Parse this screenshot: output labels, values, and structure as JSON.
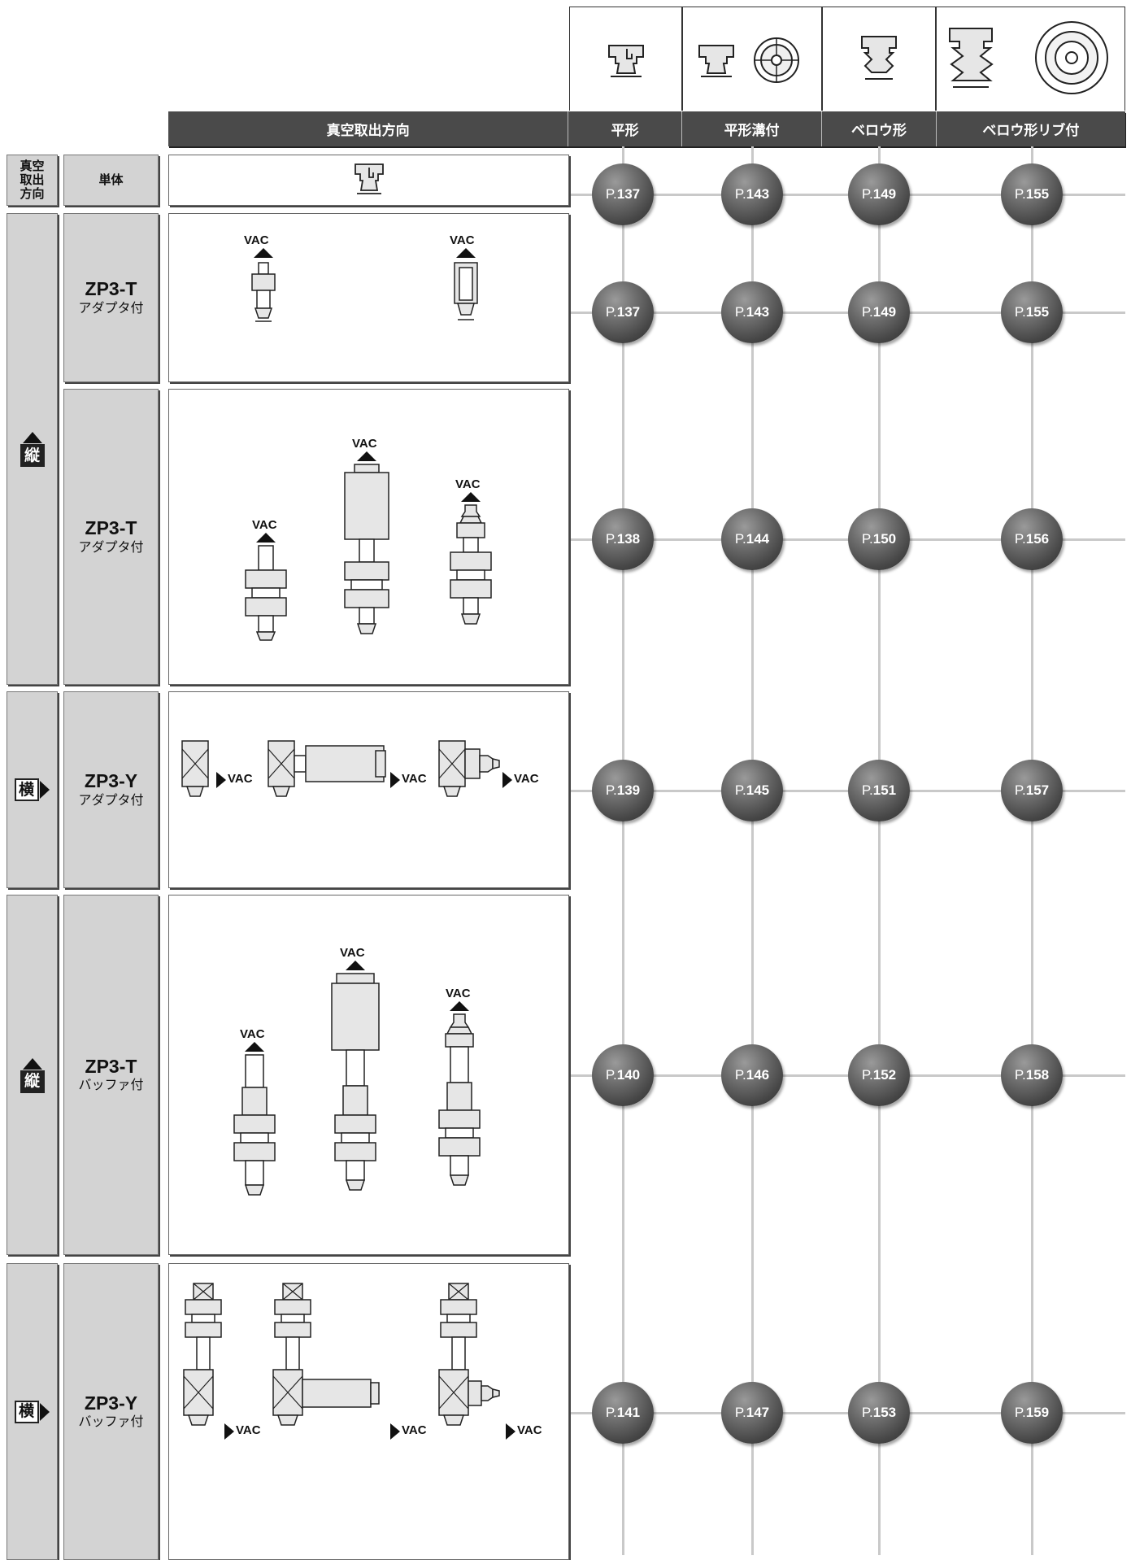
{
  "header": {
    "direction_label": "真空取出方向",
    "columns": [
      {
        "label": "平形",
        "icon": "flat-pad-icon"
      },
      {
        "label": "平形溝付",
        "icon": "flat-ribbed-pad-icon"
      },
      {
        "label": "ベロウ形",
        "icon": "bellows-pad-icon"
      },
      {
        "label": "ベロウ形リブ付",
        "icon": "bellows-ribbed-pad-icon"
      }
    ]
  },
  "rows": [
    {
      "group": "真空取出方向",
      "model": "",
      "sub": "単体",
      "pages": [
        "137",
        "143",
        "149",
        "155"
      ]
    },
    {
      "group": "縦",
      "model": "ZP3-T",
      "sub": "アダプタ付",
      "pages": [
        "137",
        "143",
        "149",
        "155"
      ]
    },
    {
      "group": "縦",
      "model": "ZP3-T",
      "sub": "アダプタ付",
      "pages": [
        "138",
        "144",
        "150",
        "156"
      ]
    },
    {
      "group": "横",
      "model": "ZP3-Y",
      "sub": "アダプタ付",
      "pages": [
        "139",
        "145",
        "151",
        "157"
      ]
    },
    {
      "group": "縦",
      "model": "ZP3-T",
      "sub": "バッファ付",
      "pages": [
        "140",
        "146",
        "152",
        "158"
      ]
    },
    {
      "group": "横",
      "model": "ZP3-Y",
      "sub": "バッファ付",
      "pages": [
        "141",
        "147",
        "153",
        "159"
      ]
    }
  ],
  "labels": {
    "group0_line1": "真空",
    "group0_line2": "取出",
    "group0_line3": "方向",
    "vertical": "縦",
    "horizontal": "横",
    "vac": "VAC",
    "page_prefix": "P."
  }
}
